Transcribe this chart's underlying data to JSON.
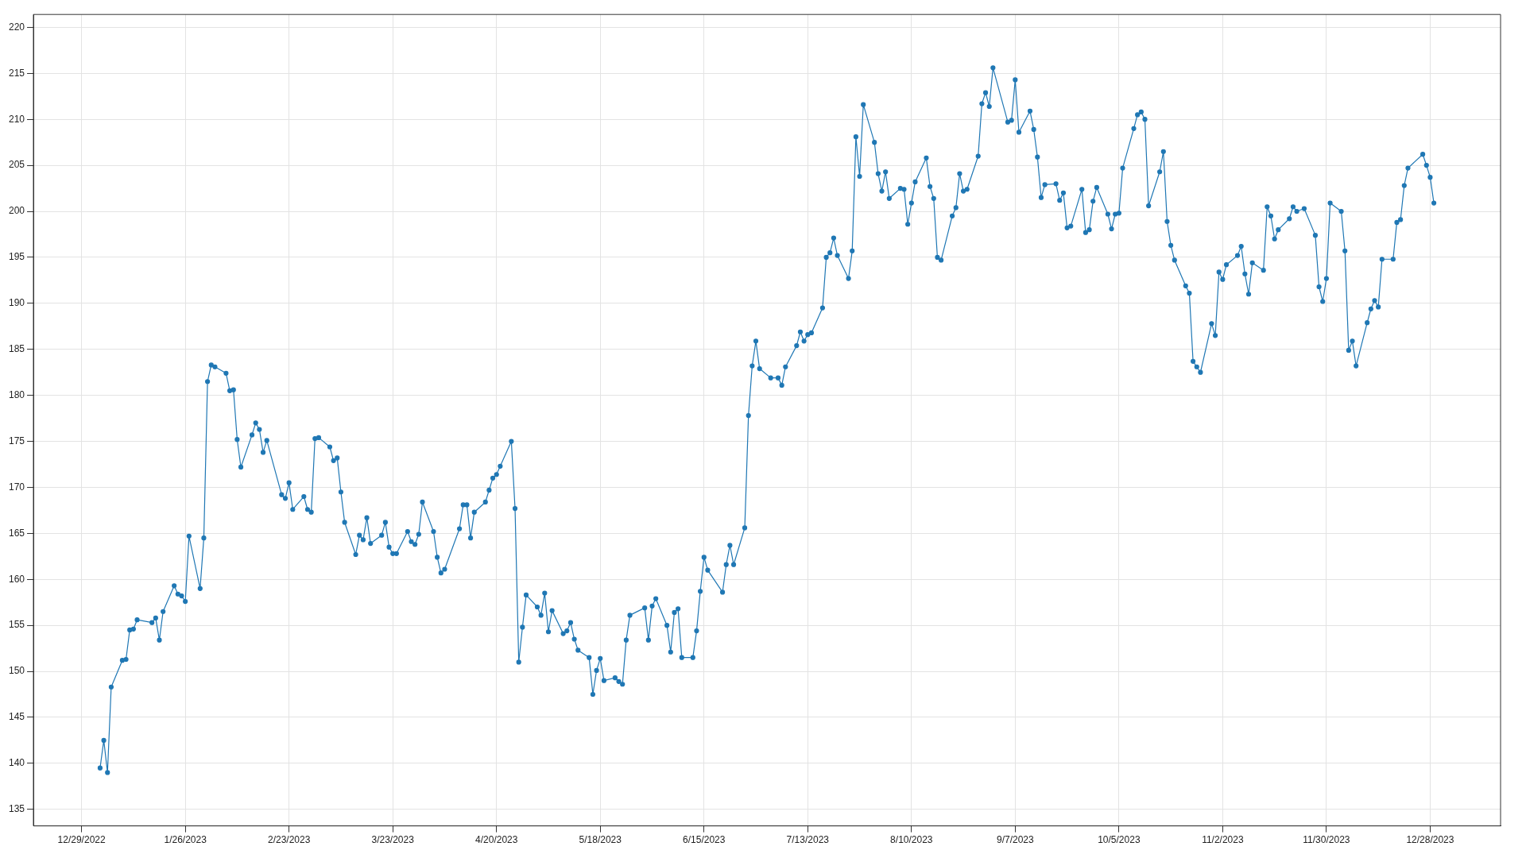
{
  "chart_data": {
    "type": "line",
    "marker": "circle",
    "grid": true,
    "legend": false,
    "line_style": "solid",
    "xlim": [
      "2022-12-16",
      "2024-01-16"
    ],
    "xticks": [
      {
        "value": "2022-12-29",
        "label": "12/29/2022"
      },
      {
        "value": "2023-01-26",
        "label": "1/26/2023"
      },
      {
        "value": "2023-02-23",
        "label": "2/23/2023"
      },
      {
        "value": "2023-03-23",
        "label": "3/23/2023"
      },
      {
        "value": "2023-04-20",
        "label": "4/20/2023"
      },
      {
        "value": "2023-05-18",
        "label": "5/18/2023"
      },
      {
        "value": "2023-06-15",
        "label": "6/15/2023"
      },
      {
        "value": "2023-07-13",
        "label": "7/13/2023"
      },
      {
        "value": "2023-08-10",
        "label": "8/10/2023"
      },
      {
        "value": "2023-09-07",
        "label": "9/7/2023"
      },
      {
        "value": "2023-10-05",
        "label": "10/5/2023"
      },
      {
        "value": "2023-11-02",
        "label": "11/2/2023"
      },
      {
        "value": "2023-11-30",
        "label": "11/30/2023"
      },
      {
        "value": "2023-12-28",
        "label": "12/28/2023"
      }
    ],
    "ylim": [
      133.2,
      221.4
    ],
    "yticks": [
      135,
      140,
      145,
      150,
      155,
      160,
      165,
      170,
      175,
      180,
      185,
      190,
      195,
      200,
      205,
      210,
      215,
      220
    ],
    "series": [
      {
        "color": "#1f77b4",
        "x": [
          "2023-01-03",
          "2023-01-04",
          "2023-01-05",
          "2023-01-06",
          "2023-01-09",
          "2023-01-10",
          "2023-01-11",
          "2023-01-12",
          "2023-01-13",
          "2023-01-17",
          "2023-01-18",
          "2023-01-19",
          "2023-01-20",
          "2023-01-23",
          "2023-01-24",
          "2023-01-25",
          "2023-01-26",
          "2023-01-27",
          "2023-01-30",
          "2023-01-31",
          "2023-02-01",
          "2023-02-02",
          "2023-02-03",
          "2023-02-06",
          "2023-02-07",
          "2023-02-08",
          "2023-02-09",
          "2023-02-10",
          "2023-02-13",
          "2023-02-14",
          "2023-02-15",
          "2023-02-16",
          "2023-02-17",
          "2023-02-21",
          "2023-02-22",
          "2023-02-23",
          "2023-02-24",
          "2023-02-27",
          "2023-02-28",
          "2023-03-01",
          "2023-03-02",
          "2023-03-03",
          "2023-03-06",
          "2023-03-07",
          "2023-03-08",
          "2023-03-09",
          "2023-03-10",
          "2023-03-13",
          "2023-03-14",
          "2023-03-15",
          "2023-03-16",
          "2023-03-17",
          "2023-03-20",
          "2023-03-21",
          "2023-03-22",
          "2023-03-23",
          "2023-03-24",
          "2023-03-27",
          "2023-03-28",
          "2023-03-29",
          "2023-03-30",
          "2023-03-31",
          "2023-04-03",
          "2023-04-04",
          "2023-04-05",
          "2023-04-06",
          "2023-04-10",
          "2023-04-11",
          "2023-04-12",
          "2023-04-13",
          "2023-04-14",
          "2023-04-17",
          "2023-04-18",
          "2023-04-19",
          "2023-04-20",
          "2023-04-21",
          "2023-04-24",
          "2023-04-25",
          "2023-04-26",
          "2023-04-27",
          "2023-04-28",
          "2023-05-01",
          "2023-05-02",
          "2023-05-03",
          "2023-05-04",
          "2023-05-05",
          "2023-05-08",
          "2023-05-09",
          "2023-05-10",
          "2023-05-11",
          "2023-05-12",
          "2023-05-15",
          "2023-05-16",
          "2023-05-17",
          "2023-05-18",
          "2023-05-19",
          "2023-05-22",
          "2023-05-23",
          "2023-05-24",
          "2023-05-25",
          "2023-05-26",
          "2023-05-30",
          "2023-05-31",
          "2023-06-01",
          "2023-06-02",
          "2023-06-05",
          "2023-06-06",
          "2023-06-07",
          "2023-06-08",
          "2023-06-09",
          "2023-06-12",
          "2023-06-13",
          "2023-06-14",
          "2023-06-15",
          "2023-06-16",
          "2023-06-20",
          "2023-06-21",
          "2023-06-22",
          "2023-06-23",
          "2023-06-26",
          "2023-06-27",
          "2023-06-28",
          "2023-06-29",
          "2023-06-30",
          "2023-07-03",
          "2023-07-05",
          "2023-07-06",
          "2023-07-07",
          "2023-07-10",
          "2023-07-11",
          "2023-07-12",
          "2023-07-13",
          "2023-07-14",
          "2023-07-17",
          "2023-07-18",
          "2023-07-19",
          "2023-07-20",
          "2023-07-21",
          "2023-07-24",
          "2023-07-25",
          "2023-07-26",
          "2023-07-27",
          "2023-07-28",
          "2023-07-31",
          "2023-08-01",
          "2023-08-02",
          "2023-08-03",
          "2023-08-04",
          "2023-08-07",
          "2023-08-08",
          "2023-08-09",
          "2023-08-10",
          "2023-08-11",
          "2023-08-14",
          "2023-08-15",
          "2023-08-16",
          "2023-08-17",
          "2023-08-18",
          "2023-08-21",
          "2023-08-22",
          "2023-08-23",
          "2023-08-24",
          "2023-08-25",
          "2023-08-28",
          "2023-08-29",
          "2023-08-30",
          "2023-08-31",
          "2023-09-01",
          "2023-09-05",
          "2023-09-06",
          "2023-09-07",
          "2023-09-08",
          "2023-09-11",
          "2023-09-12",
          "2023-09-13",
          "2023-09-14",
          "2023-09-15",
          "2023-09-18",
          "2023-09-19",
          "2023-09-20",
          "2023-09-21",
          "2023-09-22",
          "2023-09-25",
          "2023-09-26",
          "2023-09-27",
          "2023-09-28",
          "2023-09-29",
          "2023-10-02",
          "2023-10-03",
          "2023-10-04",
          "2023-10-05",
          "2023-10-06",
          "2023-10-09",
          "2023-10-10",
          "2023-10-11",
          "2023-10-12",
          "2023-10-13",
          "2023-10-16",
          "2023-10-17",
          "2023-10-18",
          "2023-10-19",
          "2023-10-20",
          "2023-10-23",
          "2023-10-24",
          "2023-10-25",
          "2023-10-26",
          "2023-10-27",
          "2023-10-30",
          "2023-10-31",
          "2023-11-01",
          "2023-11-02",
          "2023-11-03",
          "2023-11-06",
          "2023-11-07",
          "2023-11-08",
          "2023-11-09",
          "2023-11-10",
          "2023-11-13",
          "2023-11-14",
          "2023-11-15",
          "2023-11-16",
          "2023-11-17",
          "2023-11-20",
          "2023-11-21",
          "2023-11-22",
          "2023-11-24",
          "2023-11-27",
          "2023-11-28",
          "2023-11-29",
          "2023-11-30",
          "2023-12-01",
          "2023-12-04",
          "2023-12-05",
          "2023-12-06",
          "2023-12-07",
          "2023-12-08",
          "2023-12-11",
          "2023-12-12",
          "2023-12-13",
          "2023-12-14",
          "2023-12-15",
          "2023-12-18",
          "2023-12-19",
          "2023-12-20",
          "2023-12-21",
          "2023-12-22",
          "2023-12-26",
          "2023-12-27",
          "2023-12-28",
          "2023-12-29"
        ],
        "values": [
          139.5,
          142.5,
          139.0,
          148.3,
          151.2,
          151.3,
          154.5,
          154.6,
          155.6,
          155.3,
          155.8,
          153.4,
          156.5,
          159.3,
          158.4,
          158.2,
          157.6,
          164.7,
          159.0,
          164.5,
          181.5,
          183.3,
          183.1,
          182.4,
          180.5,
          180.6,
          175.2,
          172.2,
          175.7,
          177.0,
          176.3,
          173.8,
          175.1,
          169.2,
          168.8,
          170.5,
          167.6,
          169.0,
          167.6,
          167.3,
          175.3,
          175.4,
          174.4,
          172.9,
          173.2,
          169.5,
          166.2,
          162.7,
          164.8,
          164.3,
          166.7,
          163.9,
          164.8,
          166.2,
          163.5,
          162.8,
          162.8,
          165.2,
          164.1,
          163.8,
          164.9,
          168.4,
          165.2,
          162.4,
          160.7,
          161.1,
          165.5,
          168.1,
          168.1,
          164.5,
          167.3,
          168.4,
          169.7,
          171.0,
          171.4,
          172.3,
          175.0,
          167.7,
          151.0,
          154.8,
          158.3,
          157.0,
          156.1,
          158.5,
          154.3,
          156.6,
          154.1,
          154.4,
          155.3,
          153.5,
          152.3,
          151.5,
          147.5,
          150.1,
          151.4,
          149.0,
          149.3,
          148.9,
          148.6,
          153.4,
          156.1,
          156.9,
          153.4,
          157.1,
          157.9,
          155.0,
          152.1,
          156.4,
          156.8,
          151.5,
          151.5,
          154.4,
          158.7,
          162.4,
          161.0,
          158.6,
          161.6,
          163.7,
          161.6,
          165.6,
          177.8,
          183.2,
          185.9,
          182.9,
          181.9,
          181.9,
          181.1,
          183.1,
          185.4,
          186.9,
          185.9,
          186.6,
          186.8,
          189.5,
          195.0,
          195.5,
          197.1,
          195.2,
          192.7,
          195.7,
          208.1,
          203.8,
          211.6,
          207.5,
          204.1,
          202.2,
          204.3,
          201.4,
          202.5,
          202.4,
          198.6,
          200.9,
          203.2,
          205.8,
          202.7,
          201.4,
          195.0,
          194.7,
          199.5,
          200.4,
          204.1,
          202.2,
          202.4,
          206.0,
          211.7,
          212.9,
          211.4,
          215.6,
          209.7,
          209.9,
          214.3,
          208.6,
          210.9,
          208.9,
          205.9,
          201.5,
          202.9,
          203.0,
          201.2,
          202.0,
          198.2,
          198.4,
          202.4,
          197.7,
          198.0,
          201.1,
          202.6,
          199.7,
          198.1,
          199.7,
          199.8,
          204.7,
          209.0,
          210.5,
          210.8,
          210.0,
          200.6,
          204.3,
          206.5,
          198.9,
          196.3,
          194.7,
          191.9,
          191.1,
          183.7,
          183.1,
          182.5,
          187.8,
          186.5,
          193.4,
          192.6,
          194.2,
          195.2,
          196.2,
          193.2,
          191.0,
          194.4,
          193.6,
          200.5,
          199.5,
          197.0,
          198.0,
          199.2,
          200.5,
          200.0,
          200.3,
          197.4,
          191.8,
          190.2,
          192.7,
          200.9,
          200.0,
          195.7,
          184.9,
          185.9,
          183.2,
          187.9,
          189.4,
          190.3,
          189.6,
          194.8,
          194.8,
          198.8,
          199.1,
          202.8,
          204.7,
          206.2,
          205.0,
          203.7,
          200.9
        ]
      }
    ]
  }
}
